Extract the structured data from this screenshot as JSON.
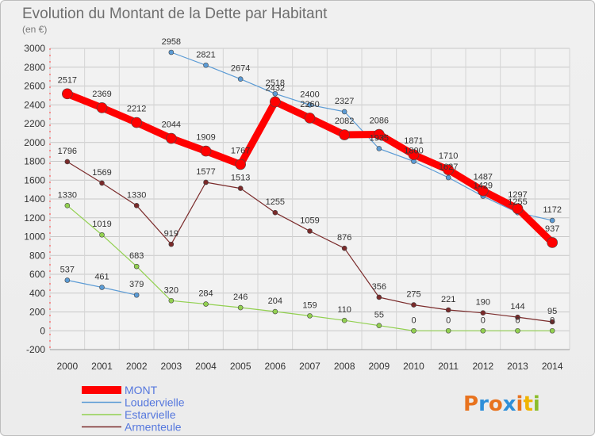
{
  "chart_data": {
    "type": "line",
    "title": "Evolution du Montant de la Dette par Habitant",
    "subtitle": "(en €)",
    "xlabel": "",
    "ylabel": "",
    "x": [
      "2000",
      "2001",
      "2002",
      "2003",
      "2004",
      "2005",
      "2006",
      "2007",
      "2008",
      "2009",
      "2010",
      "2011",
      "2012",
      "2013",
      "2014"
    ],
    "ylim": [
      -200,
      3000
    ],
    "yticks": [
      -200,
      0,
      200,
      400,
      600,
      800,
      1000,
      1200,
      1400,
      1600,
      1800,
      2000,
      2200,
      2400,
      2600,
      2800,
      3000
    ],
    "grid": true,
    "legend_position": "bottom-left",
    "series": [
      {
        "name": "MONT",
        "color": "#ff0000",
        "values": [
          2517,
          2369,
          2212,
          2044,
          1909,
          1767,
          2432,
          2260,
          2082,
          2086,
          1871,
          1710,
          1487,
          1297,
          937
        ]
      },
      {
        "name": "Loudervielle",
        "color": "#5b9bd5",
        "values": [
          537,
          461,
          379,
          2958,
          2821,
          2674,
          2518,
          2400,
          2327,
          1935,
          1800,
          1627,
          1429,
          1255,
          1172
        ]
      },
      {
        "name": "Estarvielle",
        "color": "#92d050",
        "values": [
          1330,
          1019,
          683,
          320,
          284,
          246,
          204,
          159,
          110,
          55,
          0,
          0,
          0,
          0,
          0
        ]
      },
      {
        "name": "Armenteule",
        "color": "#7a2a2a",
        "values": [
          1796,
          1569,
          1330,
          919,
          1577,
          1513,
          1255,
          1059,
          876,
          356,
          275,
          221,
          190,
          144,
          95
        ]
      }
    ]
  },
  "logo": {
    "text": "Proxiti",
    "letter_colors": [
      "#e8731f",
      "#2e8fd9",
      "#e8731f",
      "#2e8fd9",
      "#e8731f",
      "#f0b400",
      "#8bbd2a"
    ]
  }
}
